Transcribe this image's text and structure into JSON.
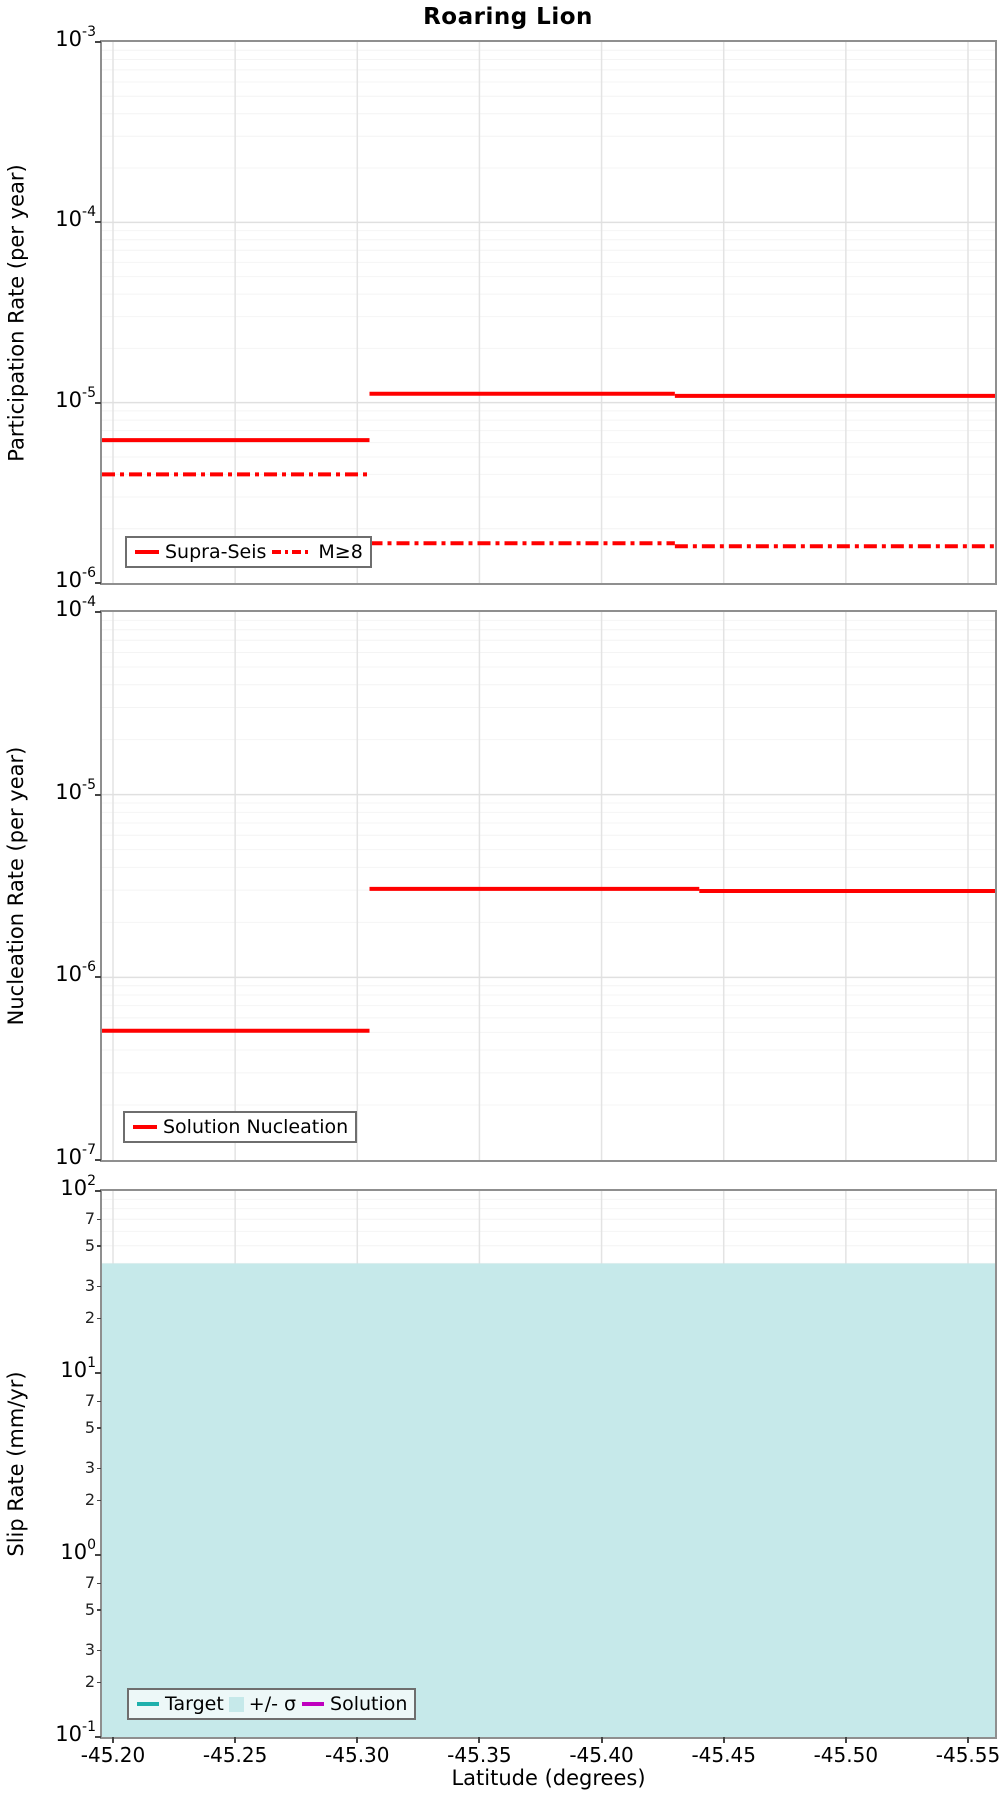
{
  "title": "Roaring Lion",
  "x_axis": {
    "label": "Latitude (degrees)",
    "tick_values": [
      -45.2,
      -45.25,
      -45.3,
      -45.35,
      -45.4,
      -45.45,
      -45.5,
      -45.55
    ],
    "tick_labels": [
      "-45.20",
      "-45.25",
      "-45.30",
      "-45.35",
      "-45.40",
      "-45.45",
      "-45.50",
      "-45.55"
    ],
    "min": -45.1955,
    "max": -45.5611
  },
  "chart_data": [
    {
      "type": "line",
      "panel": "participation-rate",
      "ylabel": "Participation Rate (per year)",
      "yscale": "log",
      "ylim": [
        1e-06,
        0.001
      ],
      "y_exp_range": [
        -6,
        -3
      ],
      "y_tick_exponents": [
        -3,
        -4,
        -5,
        -6
      ],
      "grid": true,
      "series": [
        {
          "name": "Supra-Seis",
          "color": "#ff0000",
          "style": "solid",
          "linewidth": 4,
          "segments": [
            {
              "x": [
                -45.1955,
                -45.305
              ],
              "y": 6.2e-06
            },
            {
              "x": [
                -45.305,
                -45.43
              ],
              "y": 1.12e-05
            },
            {
              "x": [
                -45.43,
                -45.5611
              ],
              "y": 1.09e-05
            }
          ]
        },
        {
          "name": "M≥8",
          "color": "#ff0000",
          "style": "dashdot",
          "linewidth": 4,
          "segments": [
            {
              "x": [
                -45.1955,
                -45.305
              ],
              "y": 4e-06
            },
            {
              "x": [
                -45.305,
                -45.43
              ],
              "y": 1.66e-06
            },
            {
              "x": [
                -45.43,
                -45.5611
              ],
              "y": 1.6e-06
            }
          ]
        }
      ],
      "legend": {
        "position": "lower left",
        "entries": [
          {
            "label": "Supra-Seis",
            "style": "solid",
            "color": "#ff0000"
          },
          {
            "label": "M≥8",
            "style": "dashdot",
            "color": "#ff0000"
          }
        ]
      }
    },
    {
      "type": "line",
      "panel": "nucleation-rate",
      "ylabel": "Nucleation Rate (per year)",
      "yscale": "log",
      "ylim": [
        1e-07,
        0.0001
      ],
      "y_exp_range": [
        -7,
        -4
      ],
      "y_tick_exponents": [
        -4,
        -5,
        -6,
        -7
      ],
      "grid": true,
      "series": [
        {
          "name": "Solution Nucleation",
          "color": "#ff0000",
          "style": "solid",
          "linewidth": 4,
          "segments": [
            {
              "x": [
                -45.1955,
                -45.305
              ],
              "y": 5.1e-07
            },
            {
              "x": [
                -45.305,
                -45.44
              ],
              "y": 3.05e-06
            },
            {
              "x": [
                -45.44,
                -45.5611
              ],
              "y": 2.97e-06
            }
          ]
        }
      ],
      "legend": {
        "position": "lower left",
        "entries": [
          {
            "label": "Solution Nucleation",
            "style": "solid",
            "color": "#ff0000"
          }
        ]
      }
    },
    {
      "type": "area",
      "panel": "slip-rate",
      "ylabel": "Slip Rate (mm/yr)",
      "yscale": "log",
      "ylim": [
        0.1,
        100
      ],
      "y_exp_range": [
        -1,
        2
      ],
      "y_tick_exponents": [
        2,
        1,
        0,
        -1
      ],
      "y_minor_tick_labels": [
        7,
        5,
        3,
        2
      ],
      "grid": true,
      "band": {
        "label": "+/- σ",
        "upper": 40,
        "lower": 0.1,
        "color": "#c6e9ea",
        "x": [
          -45.1955,
          -45.5611
        ]
      },
      "series": [],
      "legend": {
        "position": "lower left",
        "entries": [
          {
            "label": "Target",
            "style": "solid",
            "color": "#1fb0ac"
          },
          {
            "label": "+/- σ",
            "style": "patch",
            "color": "#c6e9ea"
          },
          {
            "label": "Solution",
            "style": "solid",
            "color": "#bf00bf"
          }
        ]
      }
    }
  ]
}
